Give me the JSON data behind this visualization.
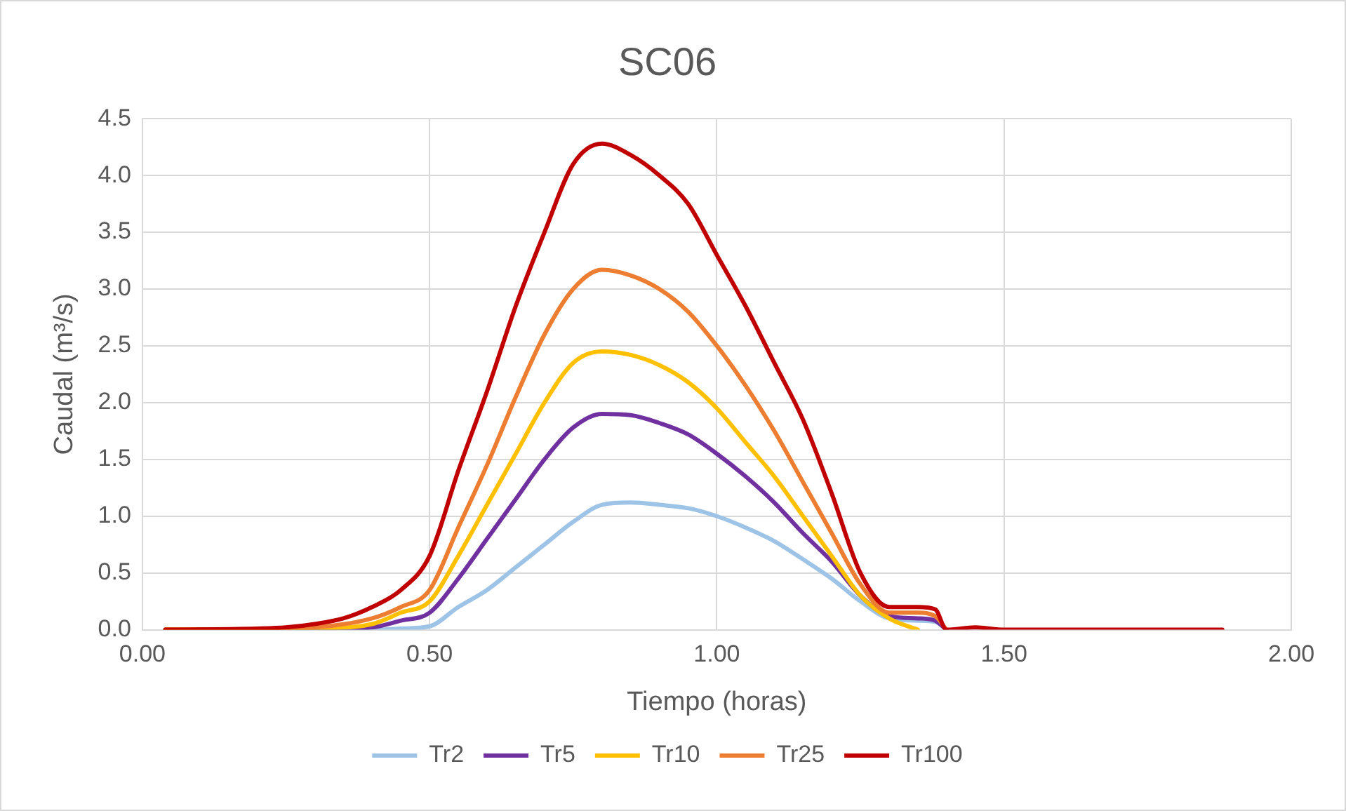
{
  "chart_data": {
    "type": "line",
    "title": "SC06",
    "xlabel": "Tiempo (horas)",
    "ylabel": "Caudal (m³/s)",
    "xlim": [
      0,
      2
    ],
    "xticks": [
      {
        "value": 0,
        "label": "0.00"
      },
      {
        "value": 0.5,
        "label": "0.50"
      },
      {
        "value": 1,
        "label": "1.00"
      },
      {
        "value": 1.5,
        "label": "1.50"
      },
      {
        "value": 2,
        "label": "2.00"
      }
    ],
    "ylim": [
      0,
      4.5
    ],
    "yticks": [
      {
        "value": 0,
        "label": "0.0"
      },
      {
        "value": 0.5,
        "label": "0.5"
      },
      {
        "value": 1,
        "label": "1.0"
      },
      {
        "value": 1.5,
        "label": "1.5"
      },
      {
        "value": 2,
        "label": "2.0"
      },
      {
        "value": 2.5,
        "label": "2.5"
      },
      {
        "value": 3,
        "label": "3.0"
      },
      {
        "value": 3.5,
        "label": "3.5"
      },
      {
        "value": 4,
        "label": "4.0"
      },
      {
        "value": 4.5,
        "label": "4.5"
      }
    ],
    "grid": true,
    "legend": "bottom",
    "marker": "none",
    "line_style": "solid",
    "series": [
      {
        "name": "Tr2",
        "color": "#9dc3e6",
        "x": [
          0.3,
          0.4,
          0.45,
          0.5,
          0.55,
          0.6,
          0.65,
          0.7,
          0.75,
          0.8,
          0.85,
          0.9,
          0.95,
          1.0,
          1.05,
          1.1,
          1.15,
          1.2,
          1.25,
          1.3,
          1.35,
          1.38,
          1.4
        ],
        "values": [
          0,
          0,
          0.01,
          0.03,
          0.2,
          0.35,
          0.55,
          0.75,
          0.95,
          1.1,
          1.12,
          1.1,
          1.07,
          1.0,
          0.9,
          0.78,
          0.62,
          0.45,
          0.25,
          0.1,
          0.08,
          0.07,
          0
        ]
      },
      {
        "name": "Tr5",
        "color": "#7030a0",
        "x": [
          0.04,
          0.2,
          0.3,
          0.4,
          0.45,
          0.5,
          0.55,
          0.6,
          0.65,
          0.7,
          0.75,
          0.8,
          0.85,
          0.9,
          0.95,
          1.0,
          1.05,
          1.1,
          1.15,
          1.2,
          1.25,
          1.3,
          1.35,
          1.38,
          1.4
        ],
        "values": [
          0,
          0,
          0,
          0.02,
          0.08,
          0.15,
          0.45,
          0.8,
          1.15,
          1.5,
          1.78,
          1.9,
          1.89,
          1.82,
          1.72,
          1.55,
          1.35,
          1.12,
          0.85,
          0.6,
          0.3,
          0.12,
          0.1,
          0.08,
          0
        ]
      },
      {
        "name": "Tr10",
        "color": "#ffc000",
        "x": [
          0.04,
          0.2,
          0.3,
          0.4,
          0.45,
          0.5,
          0.55,
          0.6,
          0.65,
          0.7,
          0.75,
          0.8,
          0.85,
          0.9,
          0.95,
          1.0,
          1.05,
          1.1,
          1.15,
          1.2,
          1.25,
          1.3,
          1.35
        ],
        "values": [
          0,
          0,
          0.01,
          0.05,
          0.15,
          0.25,
          0.65,
          1.1,
          1.55,
          2.0,
          2.35,
          2.45,
          2.42,
          2.33,
          2.18,
          1.95,
          1.65,
          1.35,
          1.0,
          0.65,
          0.3,
          0.1,
          0
        ]
      },
      {
        "name": "Tr25",
        "color": "#ed7d31",
        "x": [
          0.04,
          0.2,
          0.3,
          0.4,
          0.45,
          0.5,
          0.55,
          0.6,
          0.65,
          0.7,
          0.75,
          0.8,
          0.85,
          0.9,
          0.95,
          1.0,
          1.05,
          1.1,
          1.15,
          1.2,
          1.25,
          1.3,
          1.35,
          1.38,
          1.4
        ],
        "values": [
          0,
          0,
          0.02,
          0.1,
          0.2,
          0.35,
          0.9,
          1.45,
          2.05,
          2.6,
          3.0,
          3.17,
          3.12,
          3.0,
          2.8,
          2.5,
          2.15,
          1.75,
          1.3,
          0.85,
          0.4,
          0.15,
          0.15,
          0.12,
          0
        ]
      },
      {
        "name": "Tr100",
        "color": "#c00000",
        "x": [
          0.04,
          0.2,
          0.25,
          0.3,
          0.35,
          0.4,
          0.45,
          0.5,
          0.55,
          0.6,
          0.65,
          0.7,
          0.75,
          0.8,
          0.85,
          0.9,
          0.95,
          1.0,
          1.05,
          1.1,
          1.15,
          1.2,
          1.25,
          1.3,
          1.35,
          1.38,
          1.4,
          1.45,
          1.5,
          1.6,
          1.7,
          1.88
        ],
        "values": [
          0,
          0.01,
          0.02,
          0.05,
          0.1,
          0.2,
          0.35,
          0.65,
          1.4,
          2.1,
          2.85,
          3.5,
          4.1,
          4.28,
          4.18,
          4.0,
          3.75,
          3.3,
          2.85,
          2.35,
          1.85,
          1.2,
          0.5,
          0.2,
          0.2,
          0.18,
          0,
          0.02,
          0,
          0,
          0,
          0
        ]
      }
    ]
  }
}
